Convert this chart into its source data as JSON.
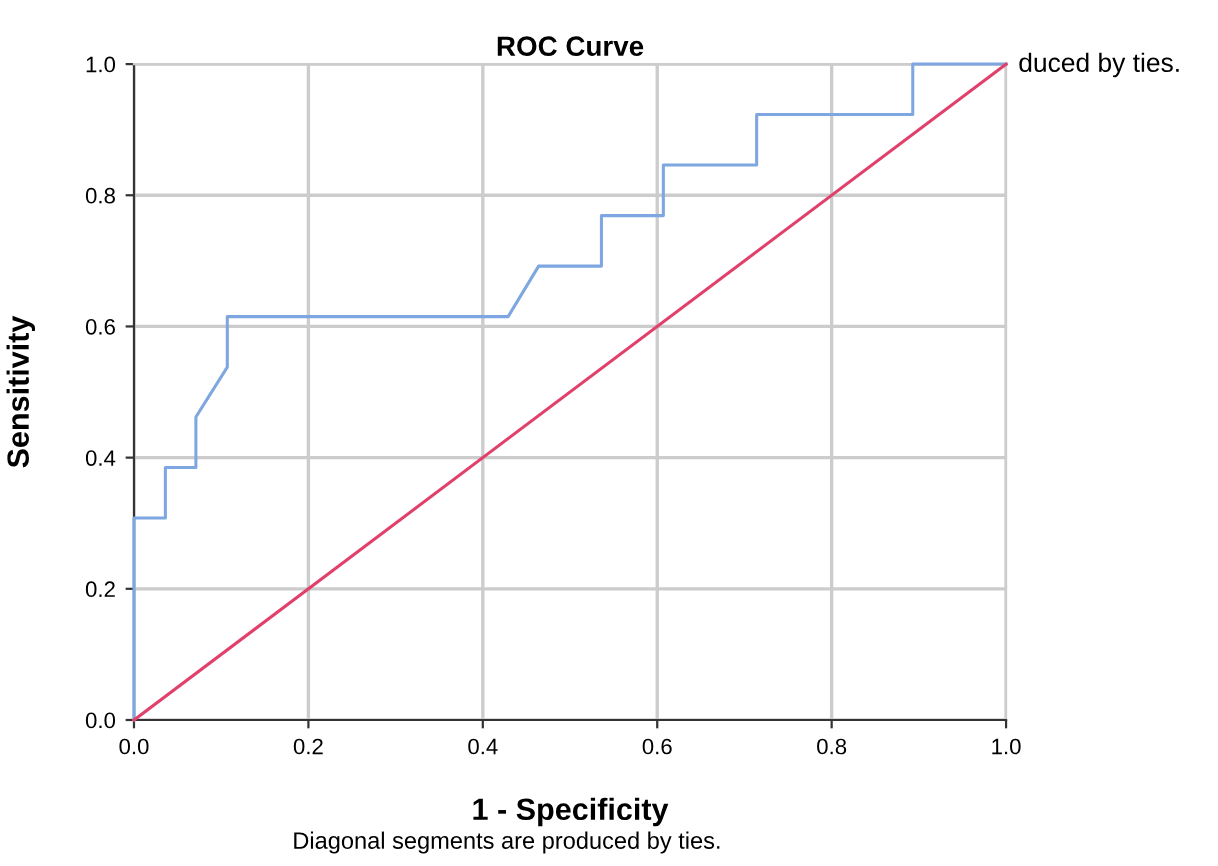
{
  "chart_data": {
    "type": "line",
    "title": "ROC Curve",
    "xlabel": "1 - Specificity",
    "ylabel": "Sensitivity",
    "series": [
      {
        "color": "#7ea6e0",
        "x": [
          0,
          0,
          0.036,
          0.036,
          0.071,
          0.071,
          0.107,
          0.107,
          0.429,
          0.464,
          0.536,
          0.536,
          0.607,
          0.607,
          0.714,
          0.714,
          0.893,
          0.893,
          1.0
        ],
        "values": [
          0,
          0.308,
          0.308,
          0.385,
          0.385,
          0.462,
          0.538,
          0.615,
          0.615,
          0.692,
          0.692,
          0.769,
          0.769,
          0.846,
          0.846,
          0.923,
          0.923,
          1.0,
          1.0
        ]
      },
      {
        "color": "#e0406a",
        "x": [
          0,
          1.0
        ],
        "values": [
          0,
          1.0
        ]
      }
    ],
    "xlim": [
      0,
      1.0
    ],
    "ylim": [
      0,
      1.0
    ],
    "xticks": [
      {
        "value": 0,
        "label": "0.0"
      },
      0.2,
      0.4,
      0.6,
      0.8,
      {
        "value": 1,
        "label": "1.0"
      }
    ],
    "yticks": [
      {
        "value": 0,
        "label": "0.0"
      },
      0.2,
      0.4,
      0.6,
      0.8,
      {
        "value": 1,
        "label": "1.0"
      }
    ],
    "grid": true,
    "marker": "none",
    "line_style": "solid",
    "annotations": [
      "Diagonal segments are produced by ties.",
      "duced by ties."
    ]
  }
}
